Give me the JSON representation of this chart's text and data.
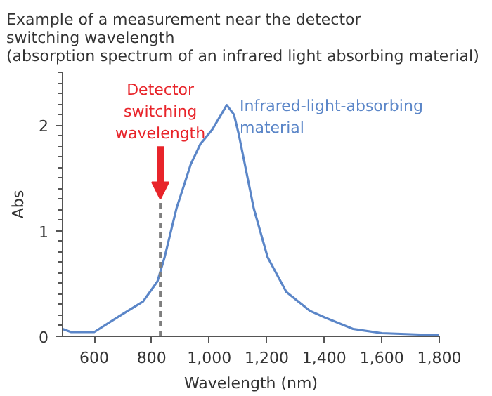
{
  "chart_data": {
    "type": "line",
    "title": "Example of a measurement near the detector\nswitching wavelength\n(absorption spectrum of an infrared light absorbing material)",
    "xlabel": "Wavelength (nm)",
    "ylabel": "Abs",
    "xlim": [
      490,
      1800
    ],
    "ylim": [
      0,
      2.5
    ],
    "xticks": [
      {
        "value": 600,
        "label": "600"
      },
      {
        "value": 800,
        "label": "800"
      },
      {
        "value": 1000,
        "label": "1,000"
      },
      {
        "value": 1200,
        "label": "1,200"
      },
      {
        "value": 1400,
        "label": "1,400"
      },
      {
        "value": 1600,
        "label": "1,600"
      },
      {
        "value": 1800,
        "label": "1,800"
      }
    ],
    "yticks": [
      0,
      1,
      2
    ],
    "grid": false,
    "series": [
      {
        "name": "Infrared-light-absorbing material",
        "color": "#5b86c8",
        "x": [
          490,
          520,
          600,
          687,
          770,
          820,
          845,
          886,
          936,
          969,
          1011,
          1061,
          1086,
          1103,
          1155,
          1203,
          1268,
          1351,
          1401,
          1500,
          1600,
          1800
        ],
        "values": [
          0.07,
          0.04,
          0.04,
          0.19,
          0.33,
          0.52,
          0.75,
          1.21,
          1.63,
          1.82,
          1.96,
          2.19,
          2.1,
          1.91,
          1.21,
          0.75,
          0.42,
          0.24,
          0.18,
          0.07,
          0.03,
          0.01
        ]
      }
    ],
    "ref_lines": [
      {
        "axis": "x",
        "value": 830,
        "label": "Detector\nswitching\nwavelength",
        "color": "#7f7f7f",
        "line_style": "dashed"
      }
    ]
  }
}
